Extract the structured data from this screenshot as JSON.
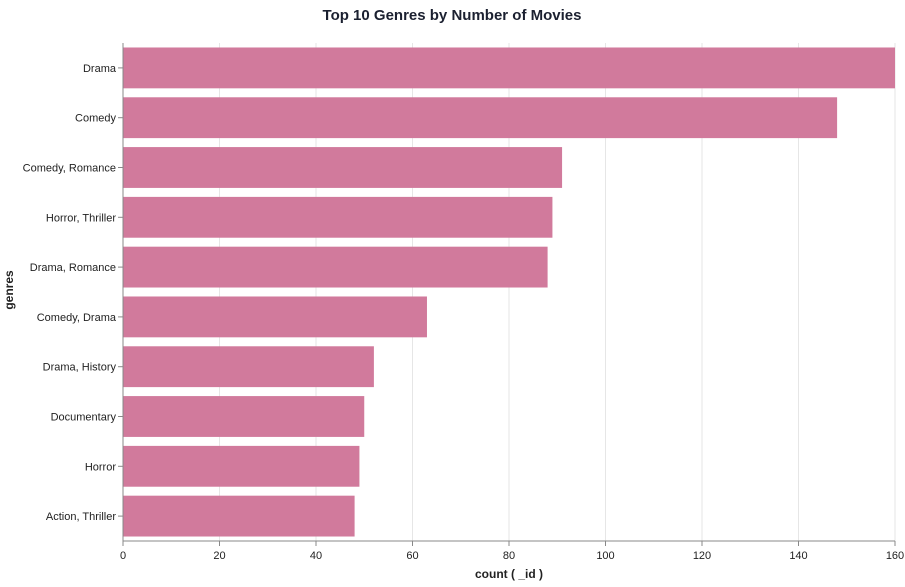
{
  "chart_data": {
    "type": "bar",
    "orientation": "horizontal",
    "title": "Top 10 Genres by Number of Movies",
    "xlabel": "count ( _id )",
    "ylabel": "genres",
    "categories": [
      "Drama",
      "Comedy",
      "Comedy, Romance",
      "Horror, Thriller",
      "Drama, Romance",
      "Comedy, Drama",
      "Drama, History",
      "Documentary",
      "Horror",
      "Action, Thriller"
    ],
    "values": [
      160,
      148,
      91,
      89,
      88,
      63,
      52,
      50,
      49,
      48
    ],
    "xlim": [
      0,
      160
    ],
    "xticks": [
      0,
      20,
      40,
      60,
      80,
      100,
      120,
      140,
      160
    ],
    "grid": true,
    "bar_color": "#d17a9c"
  }
}
